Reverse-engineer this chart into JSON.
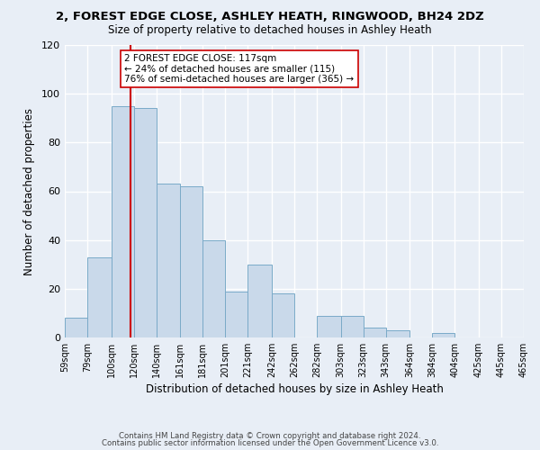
{
  "title": "2, FOREST EDGE CLOSE, ASHLEY HEATH, RINGWOOD, BH24 2DZ",
  "subtitle": "Size of property relative to detached houses in Ashley Heath",
  "xlabel": "Distribution of detached houses by size in Ashley Heath",
  "ylabel": "Number of detached properties",
  "bar_color": "#c9d9ea",
  "bar_edge_color": "#7aaac8",
  "background_color": "#e8eef6",
  "grid_color": "#ffffff",
  "bin_labels": [
    "59sqm",
    "79sqm",
    "100sqm",
    "120sqm",
    "140sqm",
    "161sqm",
    "181sqm",
    "201sqm",
    "221sqm",
    "242sqm",
    "262sqm",
    "282sqm",
    "303sqm",
    "323sqm",
    "343sqm",
    "364sqm",
    "384sqm",
    "404sqm",
    "425sqm",
    "445sqm",
    "465sqm"
  ],
  "bin_edges": [
    59,
    79,
    100,
    120,
    140,
    161,
    181,
    201,
    221,
    242,
    262,
    282,
    303,
    323,
    343,
    364,
    384,
    404,
    425,
    445,
    465
  ],
  "bar_heights": [
    8,
    33,
    95,
    94,
    63,
    62,
    40,
    19,
    30,
    18,
    0,
    9,
    9,
    4,
    3,
    0,
    2,
    0,
    0,
    0
  ],
  "ylim": [
    0,
    120
  ],
  "yticks": [
    0,
    20,
    40,
    60,
    80,
    100,
    120
  ],
  "property_line_x": 117,
  "property_line_color": "#cc0000",
  "annotation_text": "2 FOREST EDGE CLOSE: 117sqm\n← 24% of detached houses are smaller (115)\n76% of semi-detached houses are larger (365) →",
  "annotation_box_edge_color": "#cc0000",
  "footer_line1": "Contains HM Land Registry data © Crown copyright and database right 2024.",
  "footer_line2": "Contains public sector information licensed under the Open Government Licence v3.0."
}
